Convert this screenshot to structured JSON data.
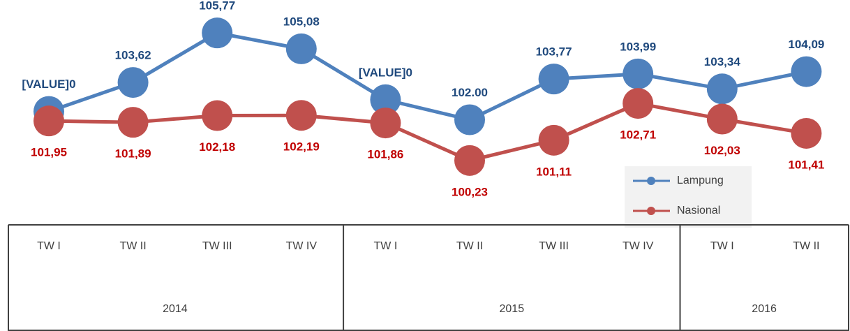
{
  "chart_data": {
    "type": "line",
    "groups": [
      {
        "label": "2014",
        "categories": [
          "TW I",
          "TW II",
          "TW III",
          "TW IV"
        ]
      },
      {
        "label": "2015",
        "categories": [
          "TW I",
          "TW II",
          "TW III",
          "TW IV"
        ]
      },
      {
        "label": "2016",
        "categories": [
          "TW I",
          "TW II"
        ]
      }
    ],
    "series": [
      {
        "name": "Lampung",
        "color": "#4f81bd",
        "label_color": "#1f497d",
        "values": [
          102.36,
          103.62,
          105.77,
          105.08,
          102.87,
          102.0,
          103.77,
          103.99,
          103.34,
          104.09
        ],
        "value_labels": [
          "[VALUE]0",
          "103,62",
          "105,77",
          "105,08",
          "[VALUE]0",
          "102.00",
          "103,77",
          "103,99",
          "103,34",
          "104,09"
        ]
      },
      {
        "name": "Nasional",
        "color": "#c0504d",
        "label_color": "#c00000",
        "values": [
          101.95,
          101.89,
          102.18,
          102.19,
          101.86,
          100.23,
          101.11,
          102.71,
          102.03,
          101.41
        ],
        "value_labels": [
          "101,95",
          "101,89",
          "102,18",
          "102,19",
          "101,86",
          "100,23",
          "101,11",
          "102,71",
          "102,03",
          "101,41"
        ]
      }
    ],
    "ylim": [
      97.8,
      107.2
    ],
    "legend": "lower right"
  }
}
